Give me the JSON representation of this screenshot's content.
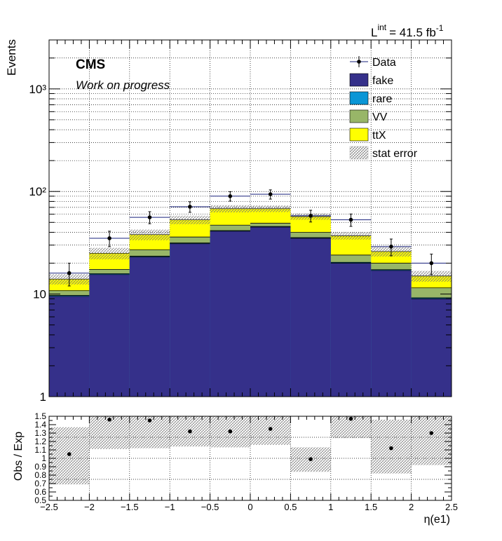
{
  "chart_data": [
    {
      "type": "bar",
      "stacked": true,
      "log_y": true,
      "ylabel": "Events",
      "xlabel": "",
      "xlim": [
        -2.5,
        2.5
      ],
      "ylim": [
        1,
        3000
      ],
      "grid": true,
      "legend_position": "top-right",
      "bin_edges": [
        -2.5,
        -2.0,
        -1.5,
        -1.0,
        -0.5,
        0.0,
        0.5,
        1.0,
        1.5,
        2.0,
        2.5
      ],
      "series": [
        {
          "name": "fake",
          "color": "#35308a",
          "values": [
            9.5,
            15.5,
            23,
            31,
            41,
            45,
            35,
            20,
            17,
            9
          ]
        },
        {
          "name": "rare",
          "color": "#0a96d6",
          "values": [
            0.2,
            0.3,
            0.4,
            0.5,
            0.6,
            0.6,
            0.5,
            0.4,
            0.3,
            0.2
          ]
        },
        {
          "name": "VV",
          "color": "#98b668",
          "values": [
            1.1,
            1.6,
            3.6,
            4.5,
            5.4,
            3.4,
            4.5,
            3.6,
            2.7,
            2.3
          ]
        },
        {
          "name": "ttX",
          "color": "#ffff00",
          "values": [
            3.2,
            7.6,
            11,
            17,
            21,
            19,
            17,
            13,
            6,
            3.5
          ]
        }
      ],
      "stat_error": {
        "name": "stat error",
        "values": [
          1.6,
          3.2,
          4.5,
          5.0,
          5.5,
          5.0,
          4.0,
          3.0,
          2.8,
          1.8
        ]
      },
      "data": {
        "name": "Data",
        "x": [
          -2.25,
          -1.75,
          -1.25,
          -0.75,
          -0.25,
          0.25,
          0.75,
          1.25,
          1.75,
          2.25
        ],
        "y": [
          16,
          35,
          56,
          71,
          90,
          94,
          58,
          53,
          29,
          20
        ],
        "err": [
          4,
          6,
          7.5,
          8.4,
          9.5,
          9.7,
          7.6,
          7.3,
          5.4,
          4.5
        ]
      },
      "y_tick_labels": [
        "1",
        "10",
        "10²",
        "10³"
      ],
      "y_tick_values": [
        1,
        10,
        100,
        1000
      ],
      "legend": [
        "Data",
        "fake",
        "rare",
        "VV",
        "ttX",
        "stat error"
      ],
      "annotations": {
        "experiment": "CMS",
        "status": "Work on progress",
        "lumi_prefix": "L",
        "lumi_superscript": "int",
        "lumi_value": "= 41.5 fb",
        "lumi_exponent": "-1"
      }
    },
    {
      "type": "scatter",
      "ylabel": "Obs / Exp",
      "xlabel": "η(e1)",
      "xlim": [
        -2.5,
        2.5
      ],
      "ylim": [
        0.5,
        1.5
      ],
      "grid": true,
      "x": [
        -2.25,
        -1.75,
        -1.25,
        -0.75,
        -0.25,
        0.25,
        0.75,
        1.25,
        1.75,
        2.25
      ],
      "ratio": [
        1.05,
        1.46,
        1.45,
        1.32,
        1.32,
        1.35,
        0.99,
        1.47,
        1.12,
        1.3
      ],
      "band_low": [
        0.69,
        1.11,
        1.12,
        1.14,
        1.13,
        1.16,
        0.84,
        1.24,
        0.82,
        0.92
      ],
      "band_high": [
        1.37,
        1.5,
        1.5,
        1.5,
        1.5,
        1.5,
        1.13,
        1.5,
        1.46,
        1.5
      ],
      "x_tick_labels": [
        "−2.5",
        "−2",
        "−1.5",
        "−1",
        "−0.5",
        "0",
        "0.5",
        "1",
        "1.5",
        "2",
        "2.5"
      ],
      "y_tick_labels": [
        "0.5",
        "0.6",
        "0.7",
        "0.8",
        "0.9",
        "1",
        "1.1",
        "1.2",
        "1.3",
        "1.4",
        "1.5"
      ]
    }
  ]
}
